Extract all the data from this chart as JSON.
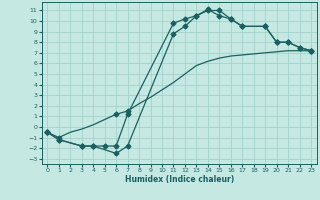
{
  "xlabel": "Humidex (Indice chaleur)",
  "bg_color": "#c5e8e2",
  "grid_color": "#9ecec7",
  "line_color": "#1a6060",
  "xlim": [
    -0.5,
    23.5
  ],
  "ylim": [
    -3.5,
    11.8
  ],
  "xticks": [
    0,
    1,
    2,
    3,
    4,
    5,
    6,
    7,
    8,
    9,
    10,
    11,
    12,
    13,
    14,
    15,
    16,
    17,
    18,
    19,
    20,
    21,
    22,
    23
  ],
  "yticks": [
    -3,
    -2,
    -1,
    0,
    1,
    2,
    3,
    4,
    5,
    6,
    7,
    8,
    9,
    10,
    11
  ],
  "curve1_x": [
    0,
    1,
    2,
    3,
    4,
    5,
    6,
    7,
    8,
    9,
    10,
    11,
    12,
    13,
    14,
    15,
    16,
    17,
    18,
    19,
    20,
    21,
    22,
    23
  ],
  "curve1_y": [
    -0.5,
    -1.0,
    -0.5,
    -0.2,
    0.2,
    0.7,
    1.2,
    1.5,
    2.2,
    2.8,
    3.5,
    4.2,
    5.0,
    5.8,
    6.2,
    6.5,
    6.7,
    6.8,
    6.9,
    7.0,
    7.1,
    7.2,
    7.2,
    7.2
  ],
  "curve2_x": [
    0,
    1,
    3,
    4,
    6,
    7,
    11,
    12,
    13,
    14,
    15,
    16,
    17,
    19,
    20,
    21,
    22,
    23
  ],
  "curve2_y": [
    -0.5,
    -1.2,
    -1.8,
    -1.8,
    -2.5,
    -1.8,
    8.8,
    9.5,
    10.5,
    11.0,
    11.0,
    10.2,
    9.5,
    9.5,
    8.0,
    8.0,
    7.5,
    7.2
  ],
  "curve3_x": [
    0,
    1,
    3,
    4,
    5,
    6,
    7,
    11,
    12,
    13,
    14,
    15,
    16,
    17,
    19,
    20,
    21,
    22,
    23
  ],
  "curve3_y": [
    -0.5,
    -1.2,
    -1.8,
    -1.8,
    -1.8,
    -1.8,
    1.2,
    9.8,
    10.2,
    10.5,
    11.1,
    10.5,
    10.2,
    9.5,
    9.5,
    8.0,
    8.0,
    7.5,
    7.2
  ]
}
